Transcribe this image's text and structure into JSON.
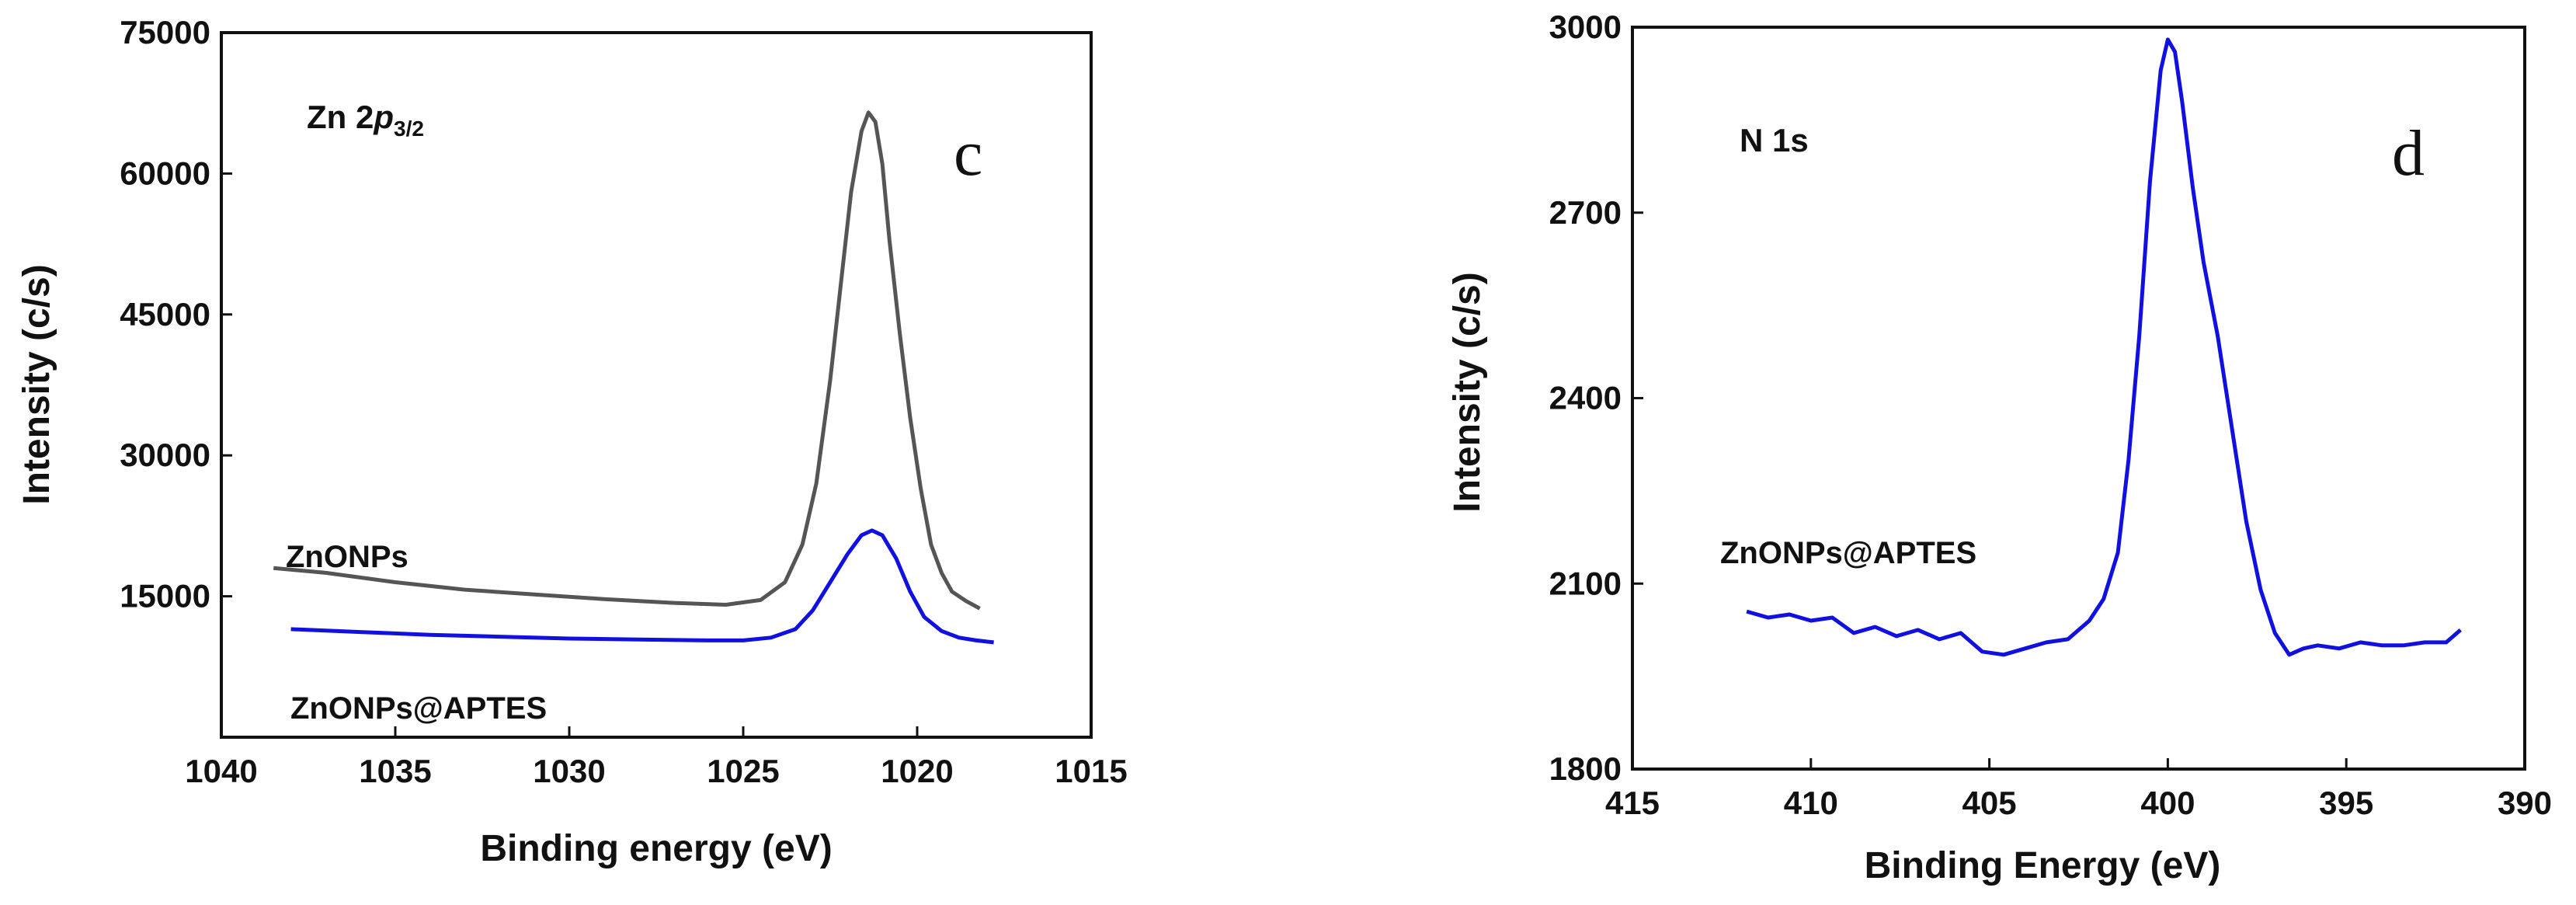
{
  "chart_data": [
    {
      "type": "line",
      "panel_letter": "c",
      "title_main": "Zn 2",
      "title_italic": "p",
      "title_sub": "3/2",
      "xlabel": "Binding energy (eV)",
      "ylabel": "Intensity (c/s)",
      "xlim": [
        1040,
        1015
      ],
      "ylim": [
        0,
        75000
      ],
      "xticks": [
        "1040",
        "1035",
        "1030",
        "1025",
        "1020",
        "1015"
      ],
      "yticks": [
        "15000",
        "30000",
        "45000",
        "60000",
        "75000"
      ],
      "grid": false,
      "colors": {
        "ZnONPs": "#555555",
        "ZnONPs@APTES": "#1010e0"
      },
      "series": [
        {
          "name": "ZnONPs",
          "x": [
            1038.5,
            1037,
            1035,
            1033,
            1031,
            1029,
            1027,
            1025.5,
            1024.5,
            1023.8,
            1023.3,
            1022.9,
            1022.5,
            1022.2,
            1021.9,
            1021.6,
            1021.4,
            1021.2,
            1021.0,
            1020.8,
            1020.5,
            1020.2,
            1019.9,
            1019.6,
            1019.3,
            1019.0,
            1018.6,
            1018.2
          ],
          "y": [
            18000,
            17500,
            16500,
            15700,
            15200,
            14700,
            14300,
            14100,
            14600,
            16500,
            20500,
            27000,
            38000,
            48000,
            58000,
            64500,
            66500,
            65500,
            61000,
            53000,
            43000,
            34000,
            26500,
            20500,
            17500,
            15500,
            14500,
            13700
          ]
        },
        {
          "name": "ZnONPs@APTES",
          "x": [
            1038,
            1036,
            1034,
            1032,
            1030,
            1028,
            1026,
            1025,
            1024.2,
            1023.5,
            1023.0,
            1022.5,
            1022.0,
            1021.6,
            1021.3,
            1021.0,
            1020.6,
            1020.2,
            1019.8,
            1019.3,
            1018.8,
            1018.3,
            1017.8
          ],
          "y": [
            11500,
            11200,
            10900,
            10700,
            10500,
            10400,
            10300,
            10300,
            10600,
            11500,
            13500,
            16500,
            19500,
            21500,
            22000,
            21500,
            19000,
            15500,
            12800,
            11300,
            10600,
            10300,
            10100
          ]
        }
      ],
      "annotations": [
        "ZnONPs",
        "ZnONPs@APTES"
      ]
    },
    {
      "type": "line",
      "panel_letter": "d",
      "title": "N 1s",
      "xlabel": "Binding Energy (eV)",
      "ylabel": "Intensity (c/s)",
      "xlim": [
        415,
        390
      ],
      "ylim": [
        1800,
        3000
      ],
      "xticks": [
        "415",
        "410",
        "405",
        "400",
        "395",
        "390"
      ],
      "yticks": [
        "1800",
        "2100",
        "2400",
        "2700",
        "3000"
      ],
      "grid": false,
      "colors": {
        "ZnONPs@APTES": "#1010e0"
      },
      "series": [
        {
          "name": "ZnONPs@APTES",
          "x": [
            411.8,
            411.2,
            410.6,
            410.0,
            409.4,
            408.8,
            408.2,
            407.6,
            407.0,
            406.4,
            405.8,
            405.2,
            404.6,
            404.0,
            403.4,
            402.8,
            402.2,
            401.8,
            401.4,
            401.1,
            400.8,
            400.5,
            400.2,
            400.0,
            399.8,
            399.6,
            399.3,
            399.0,
            398.6,
            398.2,
            397.8,
            397.4,
            397.0,
            396.6,
            396.2,
            395.8,
            395.2,
            394.6,
            394.0,
            393.4,
            392.8,
            392.2,
            391.8
          ],
          "y": [
            2055,
            2045,
            2050,
            2040,
            2045,
            2020,
            2030,
            2015,
            2025,
            2010,
            2020,
            1990,
            1985,
            1995,
            2005,
            2010,
            2040,
            2075,
            2150,
            2300,
            2500,
            2750,
            2930,
            2980,
            2960,
            2880,
            2740,
            2620,
            2500,
            2350,
            2200,
            2090,
            2020,
            1985,
            1995,
            2000,
            1995,
            2005,
            2000,
            2000,
            2005,
            2005,
            2025
          ]
        }
      ],
      "annotations": [
        "ZnONPs@APTES"
      ]
    }
  ]
}
